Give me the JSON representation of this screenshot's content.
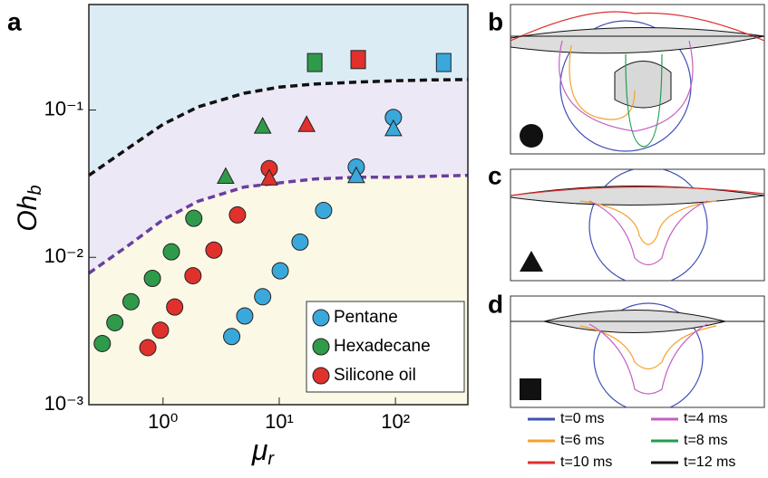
{
  "chart_data": {
    "type": "scatter",
    "x_label": "μ",
    "x_label_sub": "r",
    "y_label": "Oh",
    "y_label_sub": "b",
    "xscale": "log",
    "yscale": "log",
    "xlim": [
      0.23,
      420
    ],
    "ylim": [
      0.001,
      0.52
    ],
    "xticks": [
      {
        "value": 1,
        "label": "10⁰"
      },
      {
        "value": 10,
        "label": "10¹"
      },
      {
        "value": 100,
        "label": "10²"
      }
    ],
    "yticks": [
      {
        "value": 0.001,
        "label": "10⁻³"
      },
      {
        "value": 0.01,
        "label": "10⁻²"
      },
      {
        "value": 0.1,
        "label": "10⁻¹"
      }
    ],
    "legend": "lower right",
    "series": [
      {
        "name": "Pentane",
        "color": "#3aa8db",
        "x": [
          3.9,
          5.05,
          7.2,
          10.2,
          15.1,
          24.1,
          46,
          46,
          96,
          96,
          260
        ],
        "values": [
          0.0029,
          0.004,
          0.0054,
          0.0081,
          0.0127,
          0.0208,
          0.041,
          0.036,
          0.089,
          0.075,
          0.21
        ],
        "markers": [
          "circle",
          "circle",
          "circle",
          "circle",
          "circle",
          "circle",
          "circle",
          "triangle",
          "circle",
          "triangle",
          "square"
        ]
      },
      {
        "name": "Hexadecane",
        "color": "#2e9a4a",
        "x": [
          0.3,
          0.385,
          0.53,
          0.81,
          1.18,
          1.84,
          3.46,
          7.2,
          20.2
        ],
        "values": [
          0.0026,
          0.0036,
          0.005,
          0.0072,
          0.0109,
          0.0184,
          0.0356,
          0.078,
          0.21
        ],
        "markers": [
          "circle",
          "circle",
          "circle",
          "circle",
          "circle",
          "circle",
          "triangle",
          "triangle",
          "square"
        ]
      },
      {
        "name": "Silicone oil",
        "color": "#e0312d",
        "x": [
          0.74,
          0.95,
          1.26,
          1.81,
          2.74,
          4.37,
          8.2,
          8.2,
          17.2,
          47.8
        ],
        "values": [
          0.00244,
          0.0032,
          0.0046,
          0.0075,
          0.0112,
          0.0194,
          0.04,
          0.0347,
          0.08,
          0.22
        ],
        "markers": [
          "circle",
          "circle",
          "circle",
          "circle",
          "circle",
          "circle",
          "circle",
          "triangle",
          "triangle",
          "square"
        ]
      }
    ],
    "curves": [
      {
        "color": "#111111",
        "region_color": "#dcecf5",
        "x": [
          0.23,
          0.5,
          1,
          2,
          5,
          10,
          20,
          50,
          100,
          200,
          420
        ],
        "values": [
          0.036,
          0.055,
          0.08,
          0.105,
          0.13,
          0.143,
          0.15,
          0.155,
          0.158,
          0.16,
          0.161
        ]
      },
      {
        "color": "#6a3fa0",
        "region_color": "#ede8f5",
        "x": [
          0.23,
          0.5,
          1,
          2,
          5,
          10,
          20,
          50,
          100,
          200,
          420
        ],
        "values": [
          0.0078,
          0.012,
          0.018,
          0.024,
          0.03,
          0.032,
          0.034,
          0.035,
          0.035,
          0.0355,
          0.036
        ]
      }
    ],
    "bottom_region_color": "#fbf9e6"
  },
  "panel_labels": [
    "a",
    "b",
    "c",
    "d"
  ],
  "time_legend": [
    {
      "label": "t=0 ms",
      "color": "#3f51b5"
    },
    {
      "label": "t=4 ms",
      "color": "#c25fc4"
    },
    {
      "label": "t=6 ms",
      "color": "#f4a22d"
    },
    {
      "label": "t=8 ms",
      "color": "#1f9d4f"
    },
    {
      "label": "t=10 ms",
      "color": "#e02f2f"
    },
    {
      "label": "t=12 ms",
      "color": "#111111"
    }
  ]
}
